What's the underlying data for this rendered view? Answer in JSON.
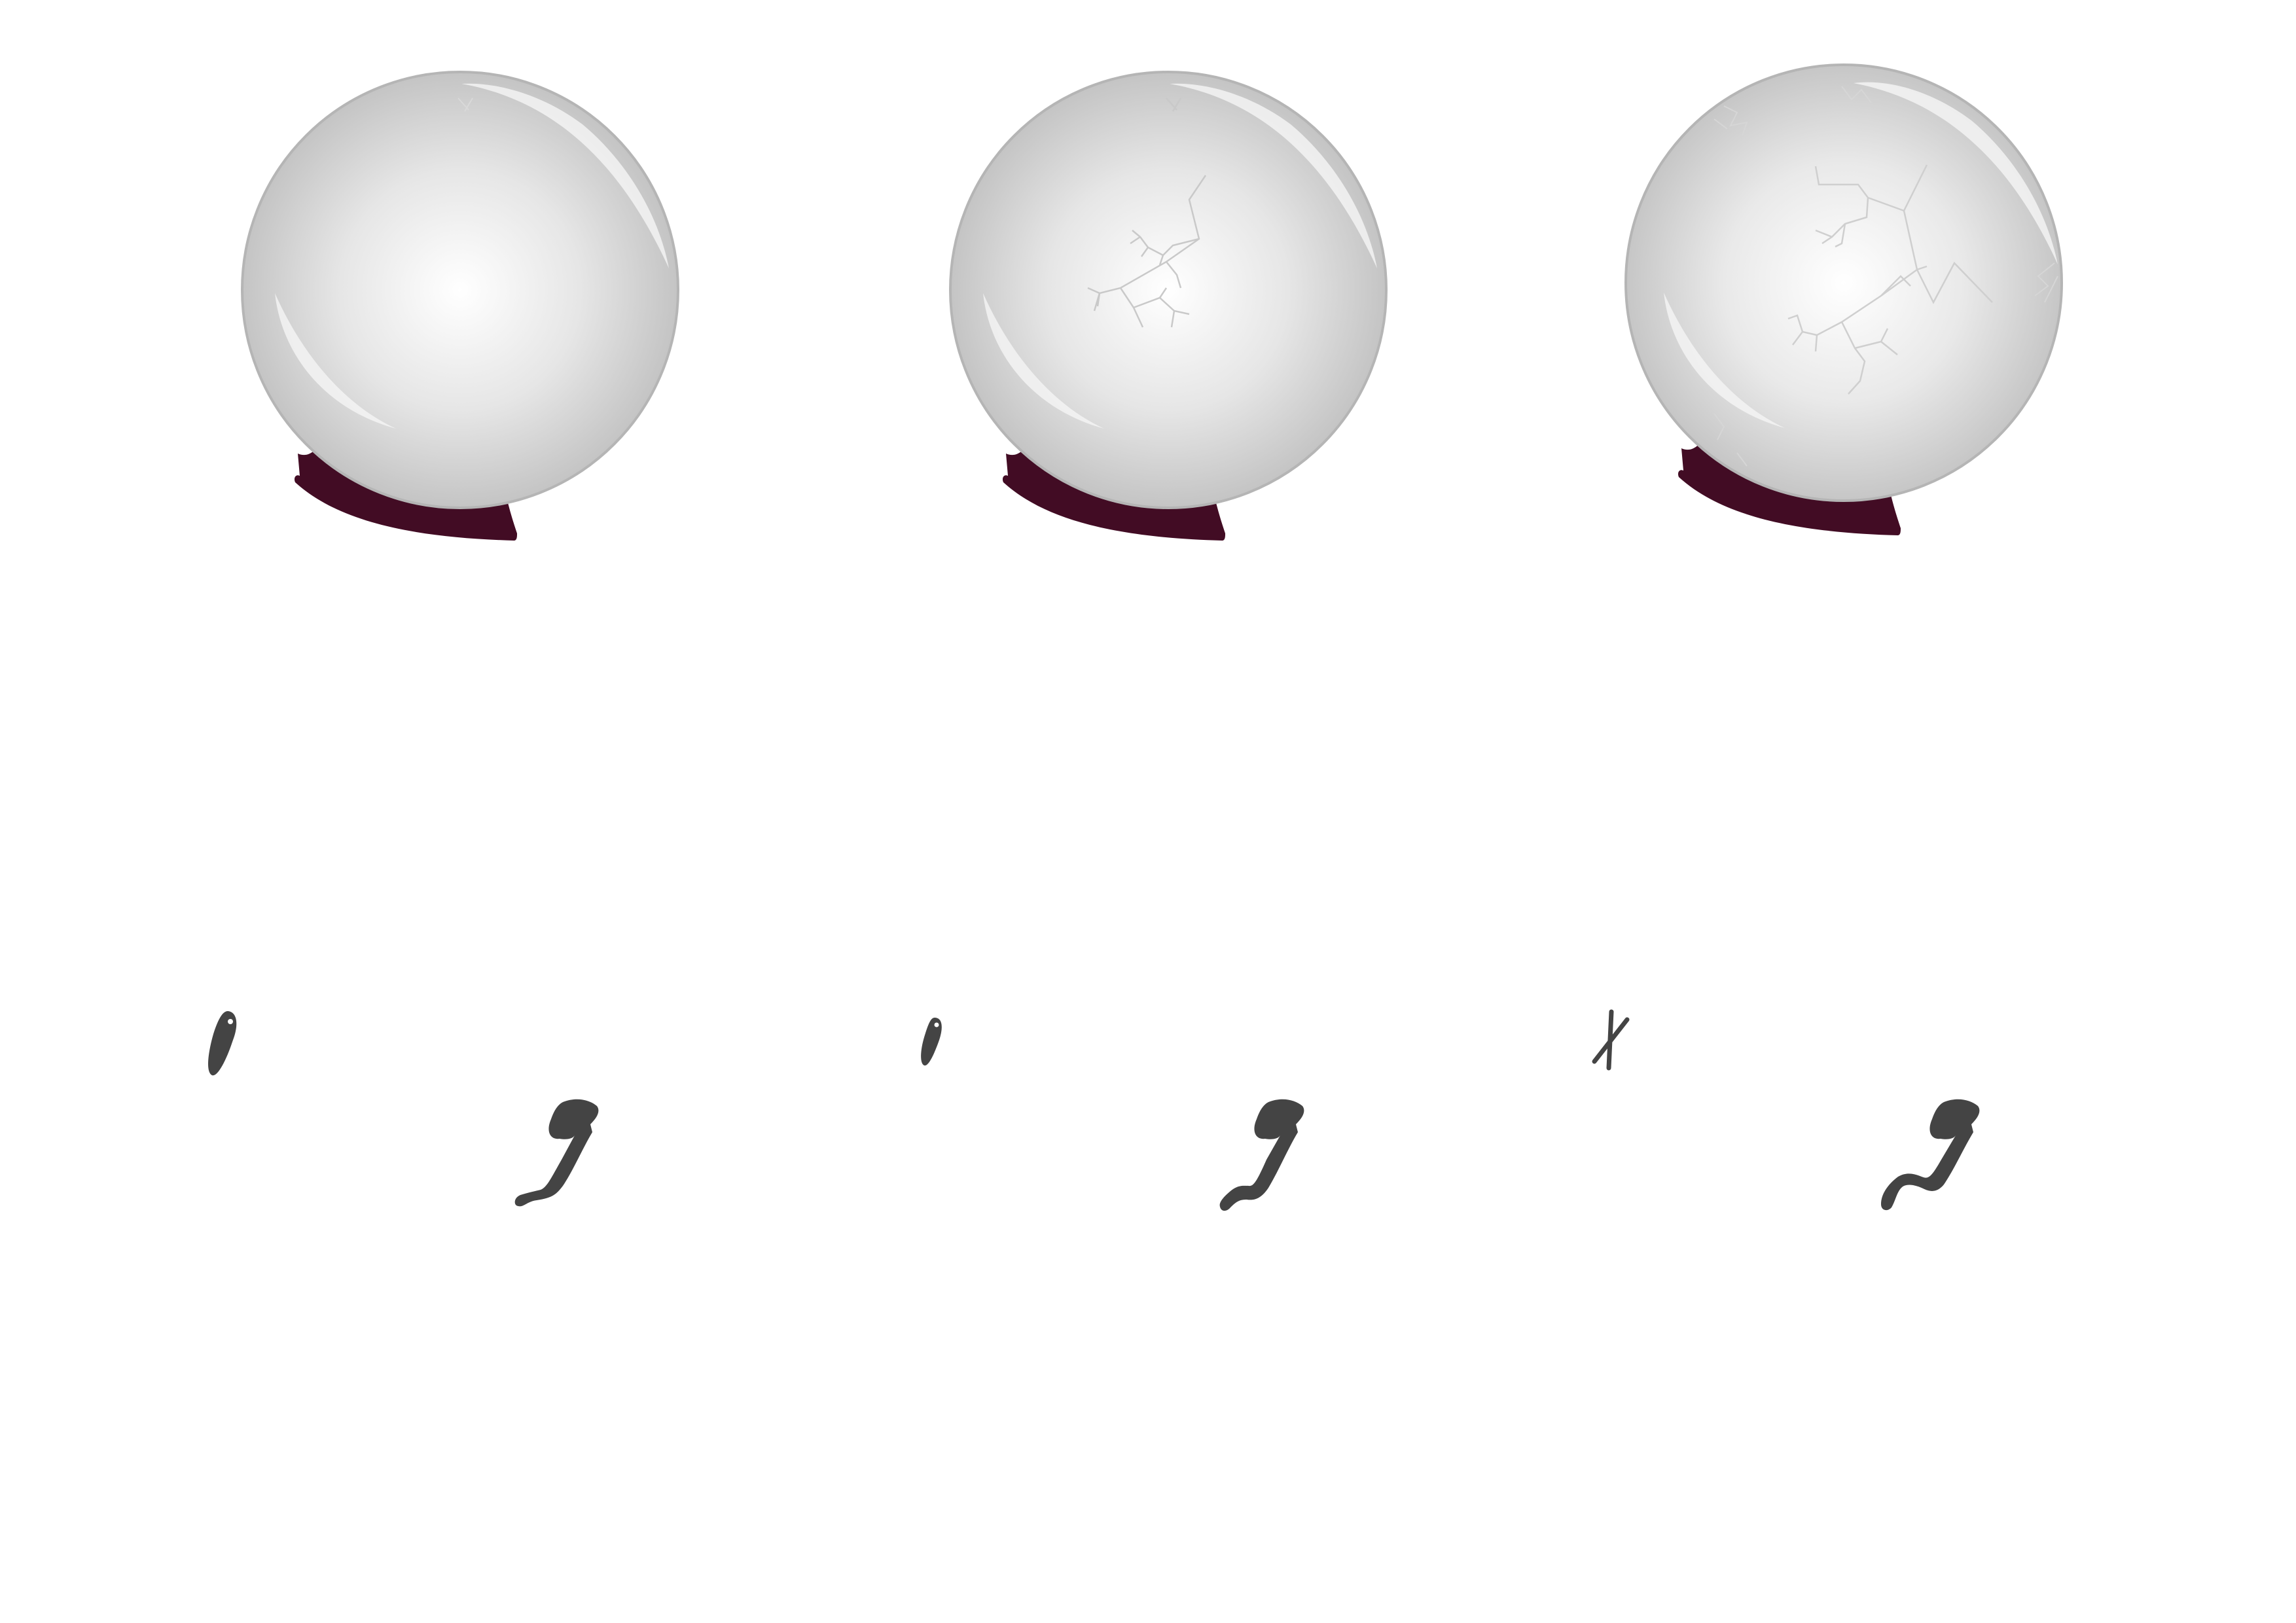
{
  "colors": {
    "background": "#ffffff",
    "orb_rim": "#b3b3b3",
    "orb_center": "#ffffff",
    "orb_edge": "#c6c6c6",
    "highlight": "#f2f2f2",
    "stand": "#420c24",
    "crack": "#c8c8c8",
    "glyph": "#444444"
  },
  "orbs": [
    {
      "name": "crystal-ball-intact",
      "crack_stage": 0
    },
    {
      "name": "crystal-ball-cracked",
      "crack_stage": 1
    },
    {
      "name": "crystal-ball-shattering",
      "crack_stage": 2
    }
  ],
  "glyph_sets": [
    {
      "name": "eye-and-hook",
      "top": "eye",
      "bottom": "hook-short"
    },
    {
      "name": "small-eye-and-hook",
      "top": "eye-small",
      "bottom": "hook-medium"
    },
    {
      "name": "cross-and-hook",
      "top": "cross",
      "bottom": "hook-long"
    }
  ]
}
